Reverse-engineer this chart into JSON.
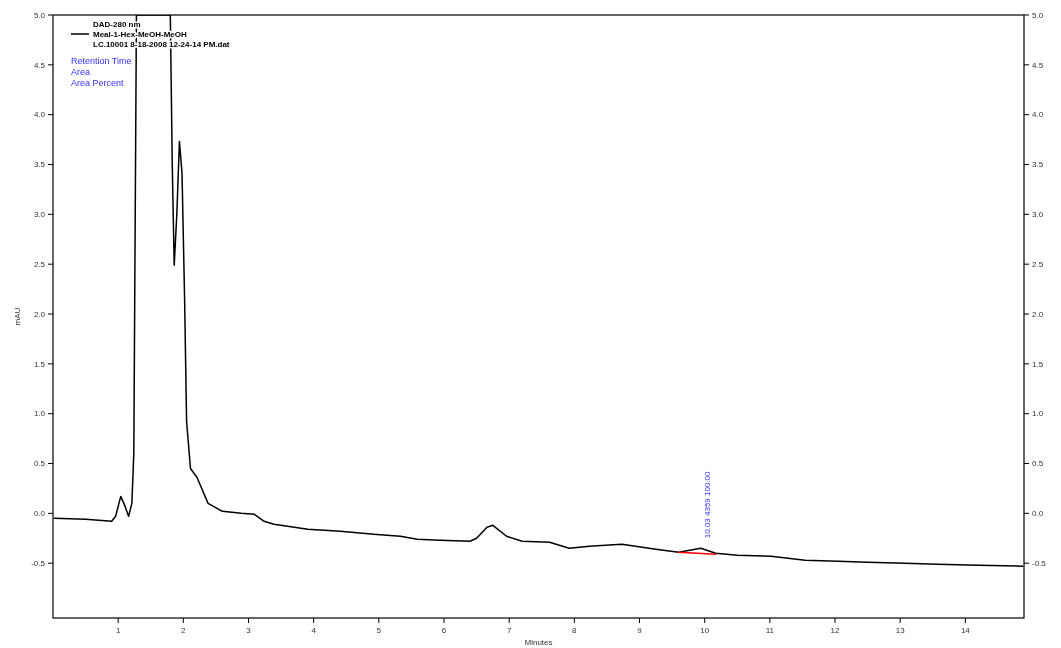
{
  "chart_data": {
    "type": "line",
    "xlabel": "Minutes",
    "ylabel": "mAU",
    "legend": "top left",
    "legend_title": "DAD-280 nm",
    "xlim": [
      0,
      14.9
    ],
    "xticks": [
      1,
      2,
      3,
      4,
      5,
      6,
      7,
      8,
      9,
      10,
      11,
      12,
      13,
      14
    ],
    "ylim": [
      -1.05,
      5
    ],
    "yticks": [
      {
        "value": -0.5,
        "label": "-0.5"
      },
      {
        "value": 0,
        "label": "0.0"
      },
      {
        "value": 0.5,
        "label": "0.5"
      },
      {
        "value": 1,
        "label": "1.0"
      },
      {
        "value": 1.5,
        "label": "1.5"
      },
      {
        "value": 2,
        "label": "2.0"
      },
      {
        "value": 2.5,
        "label": "2.5"
      },
      {
        "value": 3,
        "label": "3.0"
      },
      {
        "value": 3.5,
        "label": "3.5"
      },
      {
        "value": 4,
        "label": "4.0"
      },
      {
        "value": 4.5,
        "label": "4.5"
      },
      {
        "value": 5,
        "label": "5.0"
      }
    ],
    "y2lim": [
      -1.05,
      5
    ],
    "y2ticks": [
      {
        "value": -0.5,
        "label": "-0.5"
      },
      {
        "value": 0,
        "label": "0.0"
      },
      {
        "value": 0.5,
        "label": "0.5"
      },
      {
        "value": 1,
        "label": "1.0"
      },
      {
        "value": 1.5,
        "label": "1.5"
      },
      {
        "value": 2,
        "label": "2.0"
      },
      {
        "value": 2.5,
        "label": "2.5"
      },
      {
        "value": 3,
        "label": "3.0"
      },
      {
        "value": 3.5,
        "label": "3.5"
      },
      {
        "value": 4,
        "label": "4.0"
      },
      {
        "value": 4.5,
        "label": "4.5"
      },
      {
        "value": 5,
        "label": "5.0"
      }
    ],
    "grid": false,
    "annotations": [
      "LC.10001 8-18-2008 12-24-14 PM.dat",
      "Retention Time",
      "Area",
      "Area Percent",
      {
        "text": "10.03  4359  100.00",
        "x": 10.03,
        "y": -0.37
      }
    ],
    "series": [
      {
        "name": "Meal-1-Hex-MeOH-MeOH",
        "color": "#000000",
        "x": [
          0.02,
          0.5,
          0.9,
          0.96,
          1.04,
          1.1,
          1.16,
          1.21,
          1.24,
          1.28,
          1.8,
          1.83,
          1.86,
          1.9,
          1.94,
          1.98,
          2.02,
          2.05,
          2.11,
          2.21,
          2.38,
          2.6,
          2.89,
          3.09,
          3.24,
          3.39,
          3.91,
          4.41,
          4.92,
          5.33,
          5.59,
          5.94,
          6.4,
          6.5,
          6.66,
          6.75,
          6.96,
          7.2,
          7.62,
          7.92,
          8.23,
          8.73,
          9.25,
          9.6,
          9.94,
          10.17,
          10.5,
          11.02,
          11.54,
          12.05,
          12.5,
          13.07,
          13.57,
          14.2,
          14.88
        ],
        "values": [
          -0.05,
          -0.06,
          -0.08,
          -0.03,
          0.17,
          0.08,
          -0.03,
          0.1,
          0.6,
          5,
          5,
          3.5,
          2.49,
          3.0,
          3.73,
          3.41,
          2.13,
          0.92,
          0.45,
          0.36,
          0.1,
          0.02,
          0.0,
          -0.01,
          -0.08,
          -0.11,
          -0.16,
          -0.18,
          -0.21,
          -0.23,
          -0.26,
          -0.27,
          -0.28,
          -0.25,
          -0.14,
          -0.12,
          -0.23,
          -0.28,
          -0.29,
          -0.35,
          -0.33,
          -0.31,
          -0.36,
          -0.39,
          -0.35,
          -0.4,
          -0.42,
          -0.43,
          -0.47,
          -0.48,
          -0.49,
          -0.5,
          -0.51,
          -0.52,
          -0.53
        ]
      },
      {
        "color": "#ff0000",
        "x": [
          9.6,
          10.17
        ],
        "values": [
          -0.39,
          -0.41
        ]
      }
    ]
  }
}
